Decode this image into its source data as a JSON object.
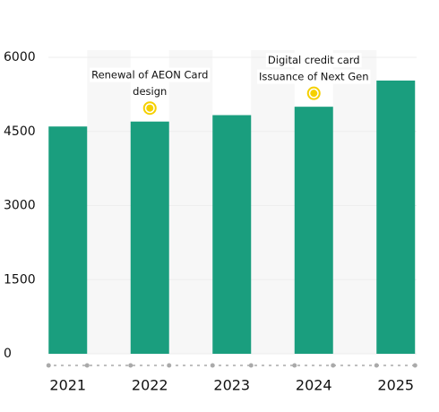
{
  "chart_data": {
    "type": "bar",
    "categories": [
      "2021",
      "2022",
      "2023",
      "2024",
      "2025"
    ],
    "values": [
      4600,
      4700,
      4830,
      5000,
      5530
    ],
    "color": "#1a9e7e",
    "ylim": [
      0,
      6000
    ],
    "yticks": [
      0,
      1500,
      3000,
      4500,
      6000
    ],
    "annotations": [
      {
        "category": "2022",
        "text": [
          "Renewal of AEON Card",
          "design"
        ],
        "color": "#f5d000"
      },
      {
        "category": "2024",
        "text": [
          "Digital credit card",
          "Issuance of Next Gen"
        ],
        "color": "#f5d000"
      }
    ]
  }
}
